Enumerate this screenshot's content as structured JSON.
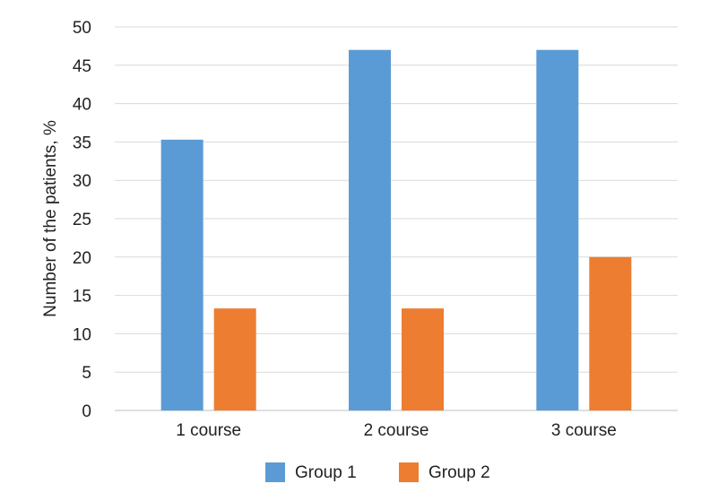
{
  "chart_data": {
    "type": "bar",
    "title": "",
    "xlabel": "",
    "ylabel": "Number of the patients, %",
    "categories": [
      "1 course",
      "2 course",
      "3 course"
    ],
    "series": [
      {
        "name": "Group 1",
        "color": "#5b9bd5",
        "values": [
          35.3,
          47.0,
          47.0
        ]
      },
      {
        "name": "Group 2",
        "color": "#ed7d31",
        "values": [
          13.3,
          13.3,
          20.0
        ]
      }
    ],
    "ylim": [
      0,
      50
    ],
    "yticks": [
      0,
      5,
      10,
      15,
      20,
      25,
      30,
      35,
      40,
      45,
      50
    ],
    "grid": true,
    "legend": "bottom"
  }
}
